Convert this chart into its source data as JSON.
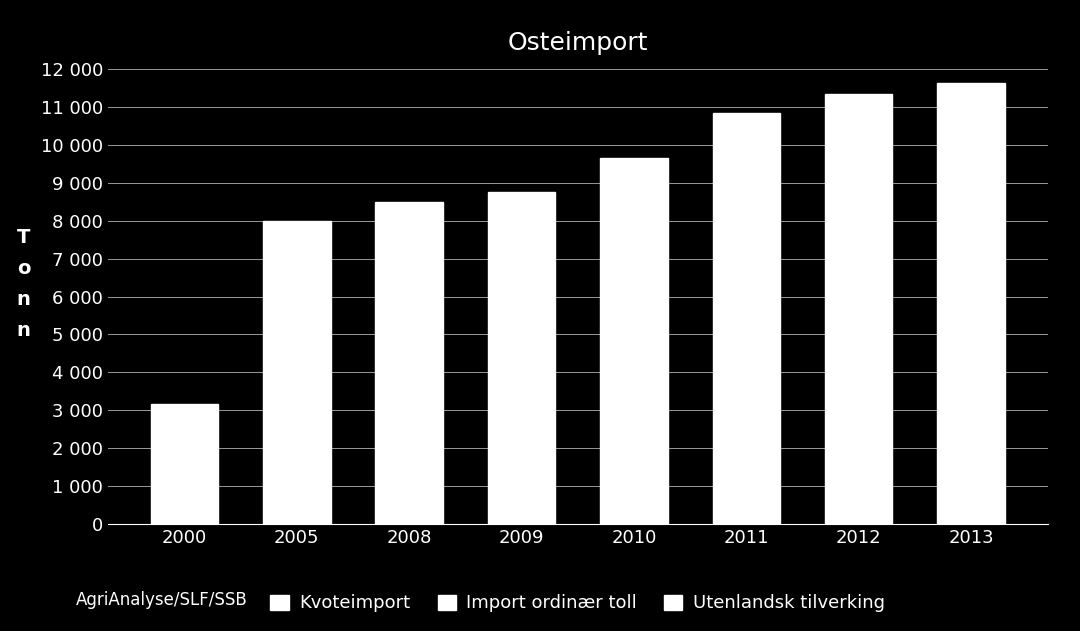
{
  "title": "Osteimport",
  "ylabel": "T\no\nn\nn",
  "source": "AgriAnalyse/SLF/SSB",
  "background_color": "#000000",
  "text_color": "#ffffff",
  "bar_color": "#ffffff",
  "categories": [
    "2000",
    "2005",
    "2008",
    "2009",
    "2010",
    "2011",
    "2012",
    "2013"
  ],
  "values": [
    3150,
    8000,
    8500,
    8750,
    9650,
    10850,
    11350,
    11650
  ],
  "ylim": [
    0,
    12000
  ],
  "yticks": [
    0,
    1000,
    2000,
    3000,
    4000,
    5000,
    6000,
    7000,
    8000,
    9000,
    10000,
    11000,
    12000
  ],
  "ytick_labels": [
    "0",
    "1 000",
    "2 000",
    "3 000",
    "4 000",
    "5 000",
    "6 000",
    "7 000",
    "8 000",
    "9 000",
    "10 000",
    "11 000",
    "12 000"
  ],
  "legend_labels": [
    "Kvoteimport",
    "Import ordinær toll",
    "Utenlandsk tilverking"
  ],
  "title_fontsize": 18,
  "ylabel_fontsize": 14,
  "tick_fontsize": 13,
  "legend_fontsize": 13,
  "source_fontsize": 12
}
